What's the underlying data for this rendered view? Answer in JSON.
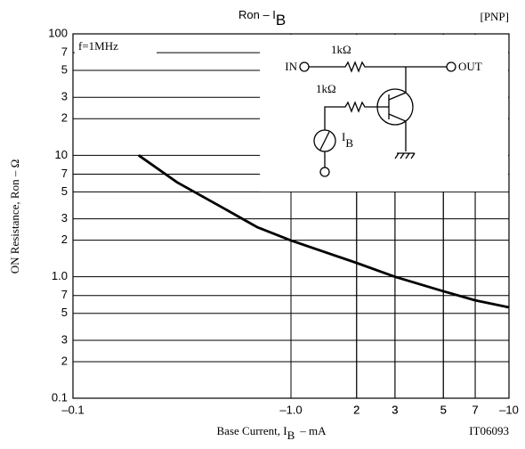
{
  "chart_data": {
    "type": "line",
    "title": "Ron – I",
    "title_subscript": "B",
    "tag": "[PNP]",
    "x_label": "Base Current, I",
    "x_label_subscript": "B",
    "x_label_unit": "– mA",
    "y_label": "ON Resistance, Ron – Ω",
    "condition": "f=1MHz",
    "figure_id": "IT06093",
    "x_scale": "log",
    "y_scale": "log",
    "grid": true,
    "xlim": [
      0.1,
      10
    ],
    "ylim": [
      0.1,
      100
    ],
    "xticks": [
      {
        "value": 0.1,
        "label": "–0.1"
      },
      2,
      3,
      5,
      7,
      {
        "value": 1,
        "label": "–1.0"
      },
      {
        "value": 2,
        "label": "2"
      },
      {
        "value": 3,
        "label": "3"
      },
      {
        "value": 5,
        "label": "5"
      },
      {
        "value": 7,
        "label": "7"
      },
      {
        "value": 10,
        "label": "–10"
      }
    ],
    "yticks": [
      100,
      {
        "value": 70,
        "label": "7"
      },
      {
        "value": 50,
        "label": "5"
      },
      {
        "value": 30,
        "label": "3"
      },
      {
        "value": 20,
        "label": "2"
      },
      10,
      7,
      5,
      3,
      2,
      {
        "value": 1,
        "label": "1.0"
      },
      {
        "value": 0.7,
        "label": "7"
      },
      {
        "value": 0.5,
        "label": "5"
      },
      {
        "value": 0.3,
        "label": "3"
      },
      {
        "value": 0.2,
        "label": "2"
      },
      0.1
    ],
    "x": [
      0.2,
      0.3,
      0.5,
      0.7,
      1,
      2,
      3,
      5,
      7,
      10
    ],
    "series": [
      {
        "color": "#000000",
        "values": [
          10,
          6.0,
          3.6,
          2.56,
          1.99,
          1.3,
          1.0,
          0.76,
          0.64,
          0.56
        ]
      }
    ],
    "circuit": {
      "r1": "1kΩ",
      "r2": "1kΩ",
      "in": "IN",
      "out": "OUT",
      "source": "I",
      "source_subscript": "B"
    }
  }
}
